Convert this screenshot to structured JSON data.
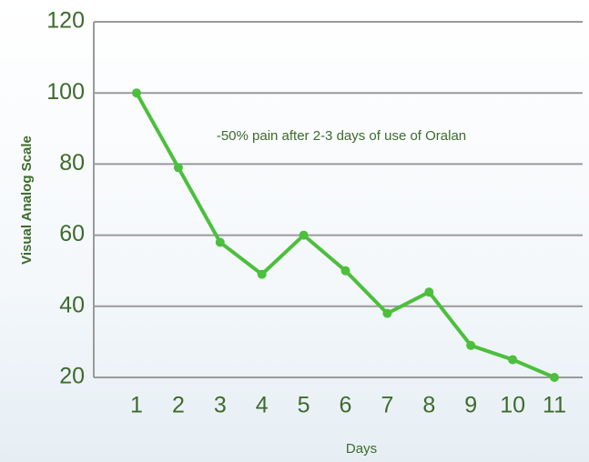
{
  "chart_data": {
    "type": "line",
    "annotation": "-50% pain after 2-3 days of use of Oralan",
    "xlabel": "Days",
    "ylabel": "Visual Analog Scale",
    "categories": [
      "1",
      "2",
      "3",
      "4",
      "5",
      "6",
      "7",
      "8",
      "9",
      "10",
      "11"
    ],
    "values": [
      100,
      79,
      58,
      49,
      60,
      50,
      38,
      44,
      29,
      25,
      20
    ],
    "color": "#4cbf3c",
    "ylim": [
      20,
      120
    ],
    "yticks": [
      20,
      40,
      60,
      80,
      100,
      120
    ],
    "grid": true
  }
}
